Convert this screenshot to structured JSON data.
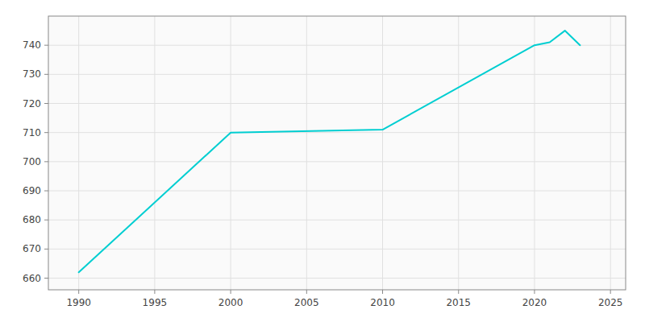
{
  "chart_data": {
    "type": "line",
    "x": [
      1990,
      2000,
      2010,
      2020,
      2021,
      2022,
      2023
    ],
    "values": [
      662,
      710,
      711,
      740,
      741,
      745,
      740
    ],
    "color": "#00CED1",
    "xlim": [
      1988,
      2026
    ],
    "ylim": [
      656,
      750
    ],
    "xticks": [
      1990,
      1995,
      2000,
      2005,
      2010,
      2015,
      2020,
      2025
    ],
    "yticks": [
      660,
      670,
      680,
      690,
      700,
      710,
      720,
      730,
      740
    ],
    "grid": true
  }
}
